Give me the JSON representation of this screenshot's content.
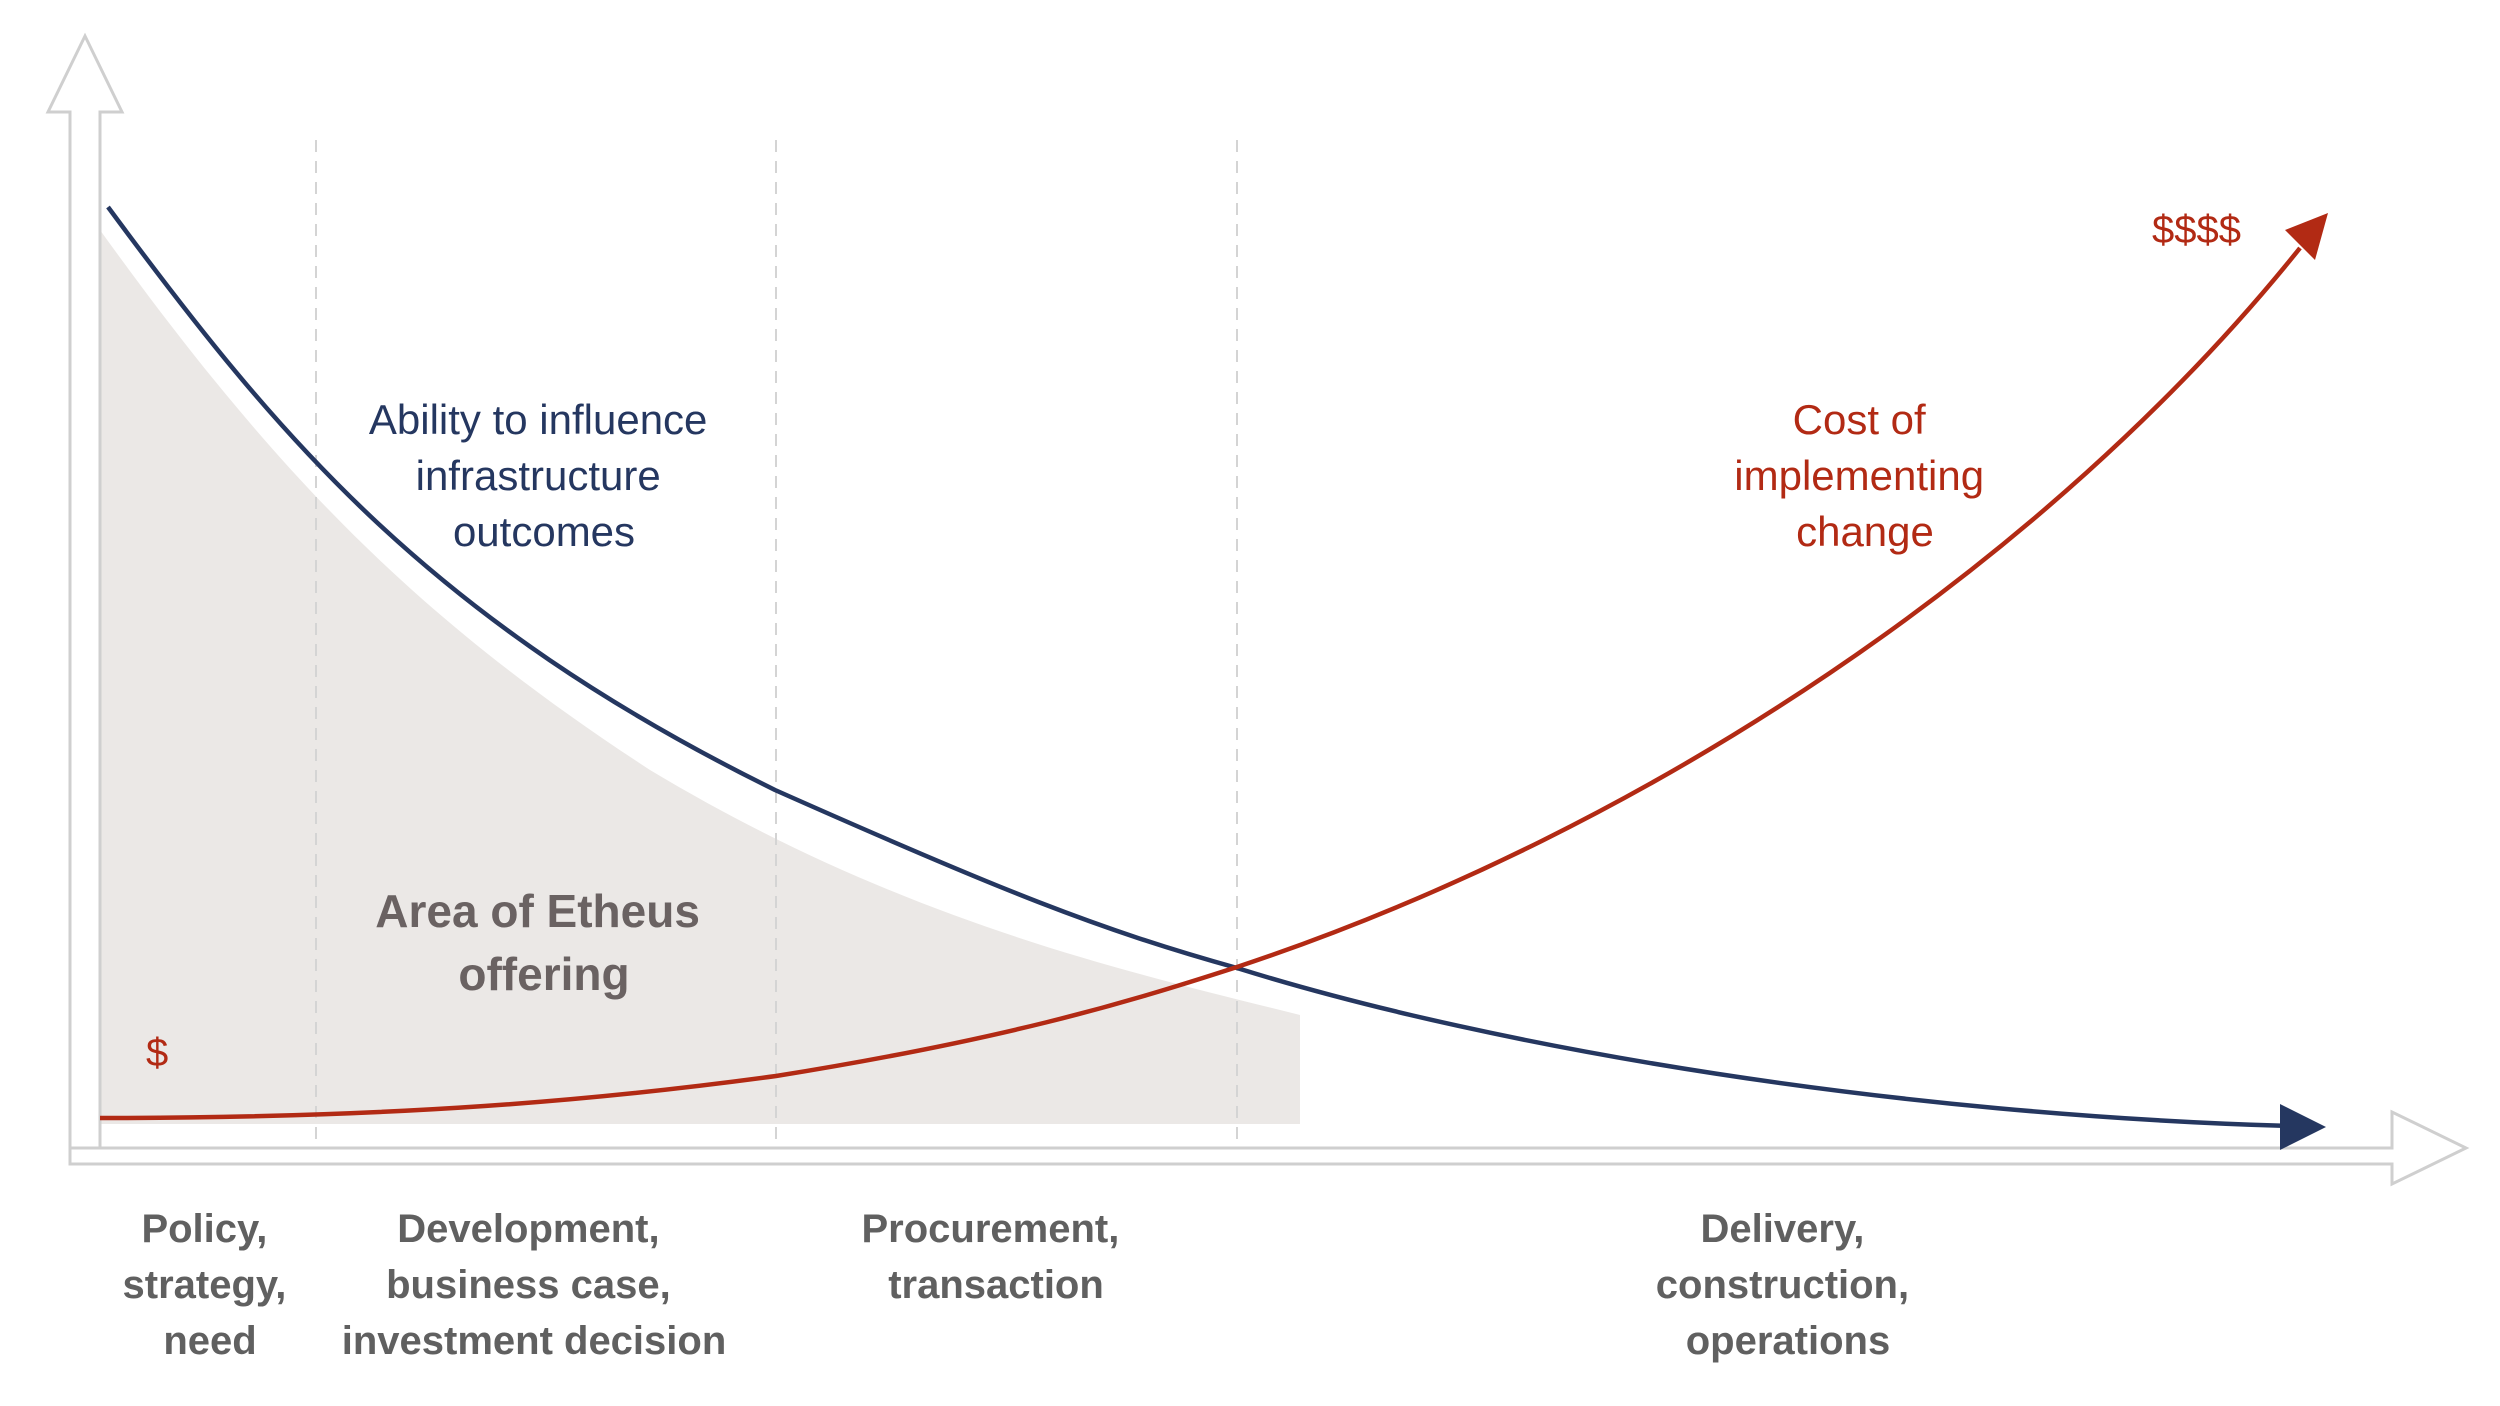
{
  "colors": {
    "navy": "#253760",
    "red": "#b22a14",
    "axis": "#cfcfcf",
    "shade": "#ebe8e6",
    "phase_text": "#606060",
    "area_text": "#6a6262"
  },
  "curves": {
    "influence": {
      "name": "influence-curve",
      "label_lines": [
        "Ability to influence",
        "infrastructure",
        "outcomes"
      ]
    },
    "cost": {
      "name": "cost-curve",
      "label_lines": [
        "Cost of",
        "implementing",
        "change"
      ],
      "low_symbol": "$",
      "high_symbol": "$$$$"
    }
  },
  "area": {
    "label_lines": [
      "Area of Etheus",
      "offering"
    ]
  },
  "phases": [
    {
      "id": "policy",
      "lines": [
        "Policy,",
        "strategy,",
        "need"
      ]
    },
    {
      "id": "development",
      "lines": [
        "Development,",
        "business case,",
        "investment decision"
      ]
    },
    {
      "id": "procurement",
      "lines": [
        "Procurement,",
        "transaction"
      ]
    },
    {
      "id": "delivery",
      "lines": [
        "Delivery,",
        "construction,",
        "operations"
      ]
    }
  ]
}
